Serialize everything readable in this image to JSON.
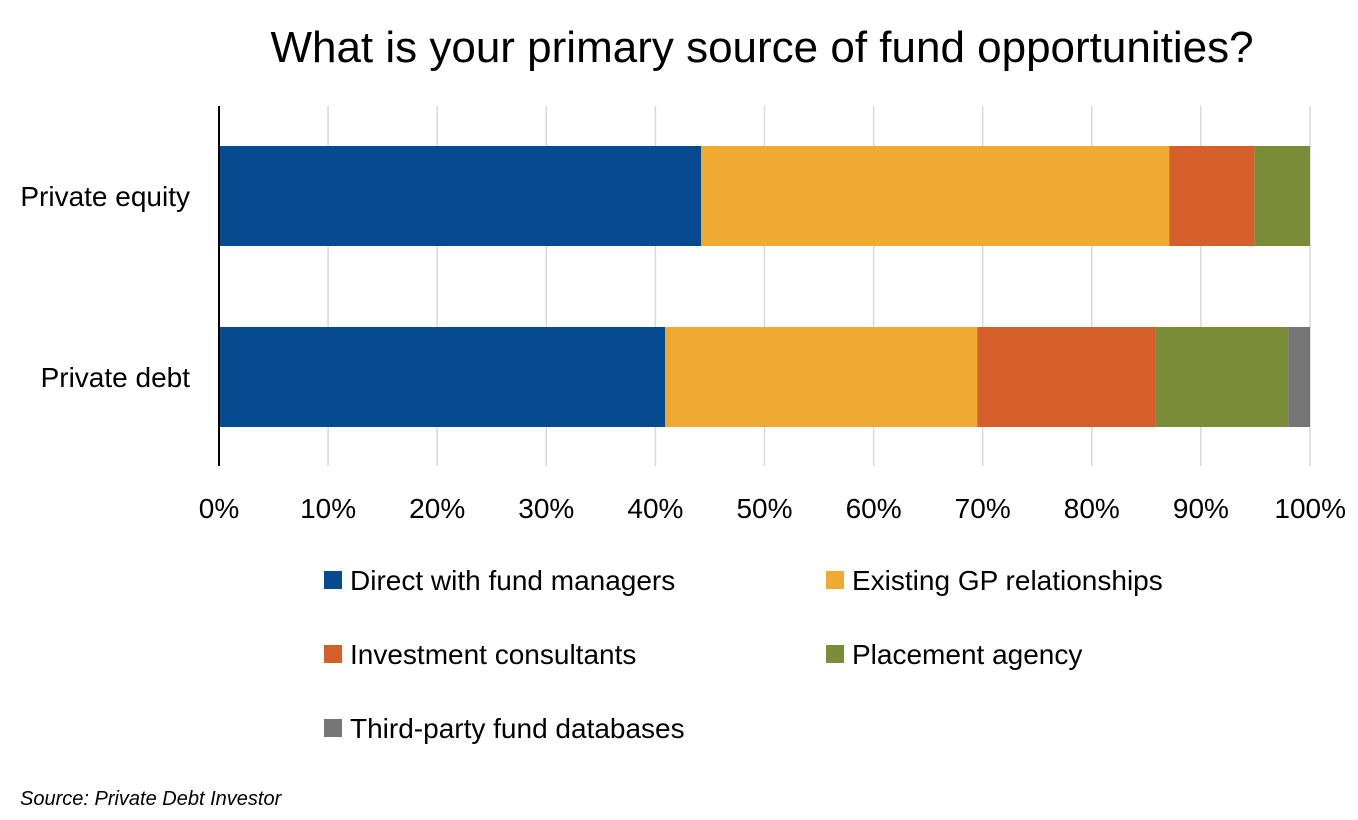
{
  "chart_data": {
    "type": "bar",
    "orientation": "horizontal",
    "stacked": true,
    "percent_stacked": true,
    "title": "What is your primary source of fund opportunities?",
    "categories": [
      "Private equity",
      "Private debt"
    ],
    "series": [
      {
        "name": "Direct with fund managers",
        "color": "#064a8f",
        "values": [
          44.2,
          40.9
        ]
      },
      {
        "name": "Existing GP relationships",
        "color": "#f0aa31",
        "values": [
          42.9,
          28.6
        ]
      },
      {
        "name": "Investment consultants",
        "color": "#d45f28",
        "values": [
          7.8,
          16.3
        ]
      },
      {
        "name": "Placement agency",
        "color": "#7b8c38",
        "values": [
          5.1,
          12.2
        ]
      },
      {
        "name": "Third-party fund databases",
        "color": "#757575",
        "values": [
          0,
          2.0
        ]
      }
    ],
    "xlim": [
      0,
      100
    ],
    "x_ticks": [
      "0%",
      "10%",
      "20%",
      "30%",
      "40%",
      "50%",
      "60%",
      "70%",
      "80%",
      "90%",
      "100%"
    ],
    "grid": "vertical",
    "legend_placement": "bottom",
    "source": "Source: Private Debt Investor"
  }
}
